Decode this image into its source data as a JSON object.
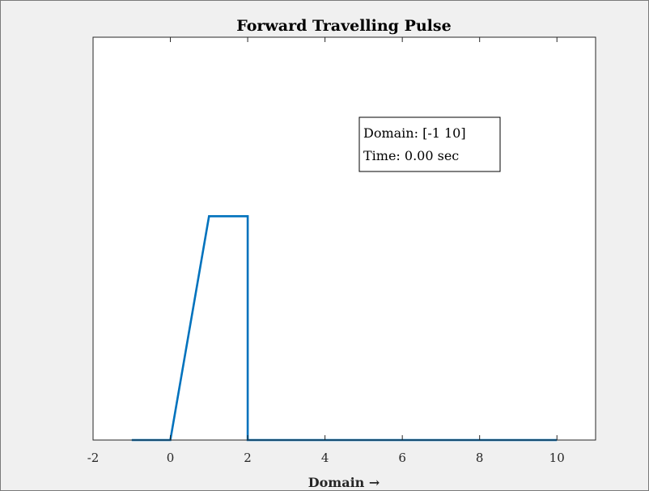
{
  "chart_data": {
    "type": "line",
    "title": "Forward Travelling Pulse",
    "xlabel": "Domain →",
    "ylabel": "",
    "xlim": [
      -2,
      11
    ],
    "ylim": [
      0,
      1.8
    ],
    "xticks": [
      -2,
      0,
      2,
      4,
      6,
      8,
      10
    ],
    "xtick_labels": [
      "-2",
      "0",
      "2",
      "4",
      "6",
      "8",
      "10"
    ],
    "yticks_visible": false,
    "grid": false,
    "series": [
      {
        "color": "#0072bd",
        "x": [
          -1,
          0,
          1,
          2,
          2,
          10
        ],
        "y": [
          0,
          0,
          1,
          1,
          0,
          0
        ]
      }
    ],
    "annotation": {
      "lines": [
        "Domain: [-1 10]",
        "Time: 0.00 sec"
      ],
      "position": "upper-right"
    }
  }
}
